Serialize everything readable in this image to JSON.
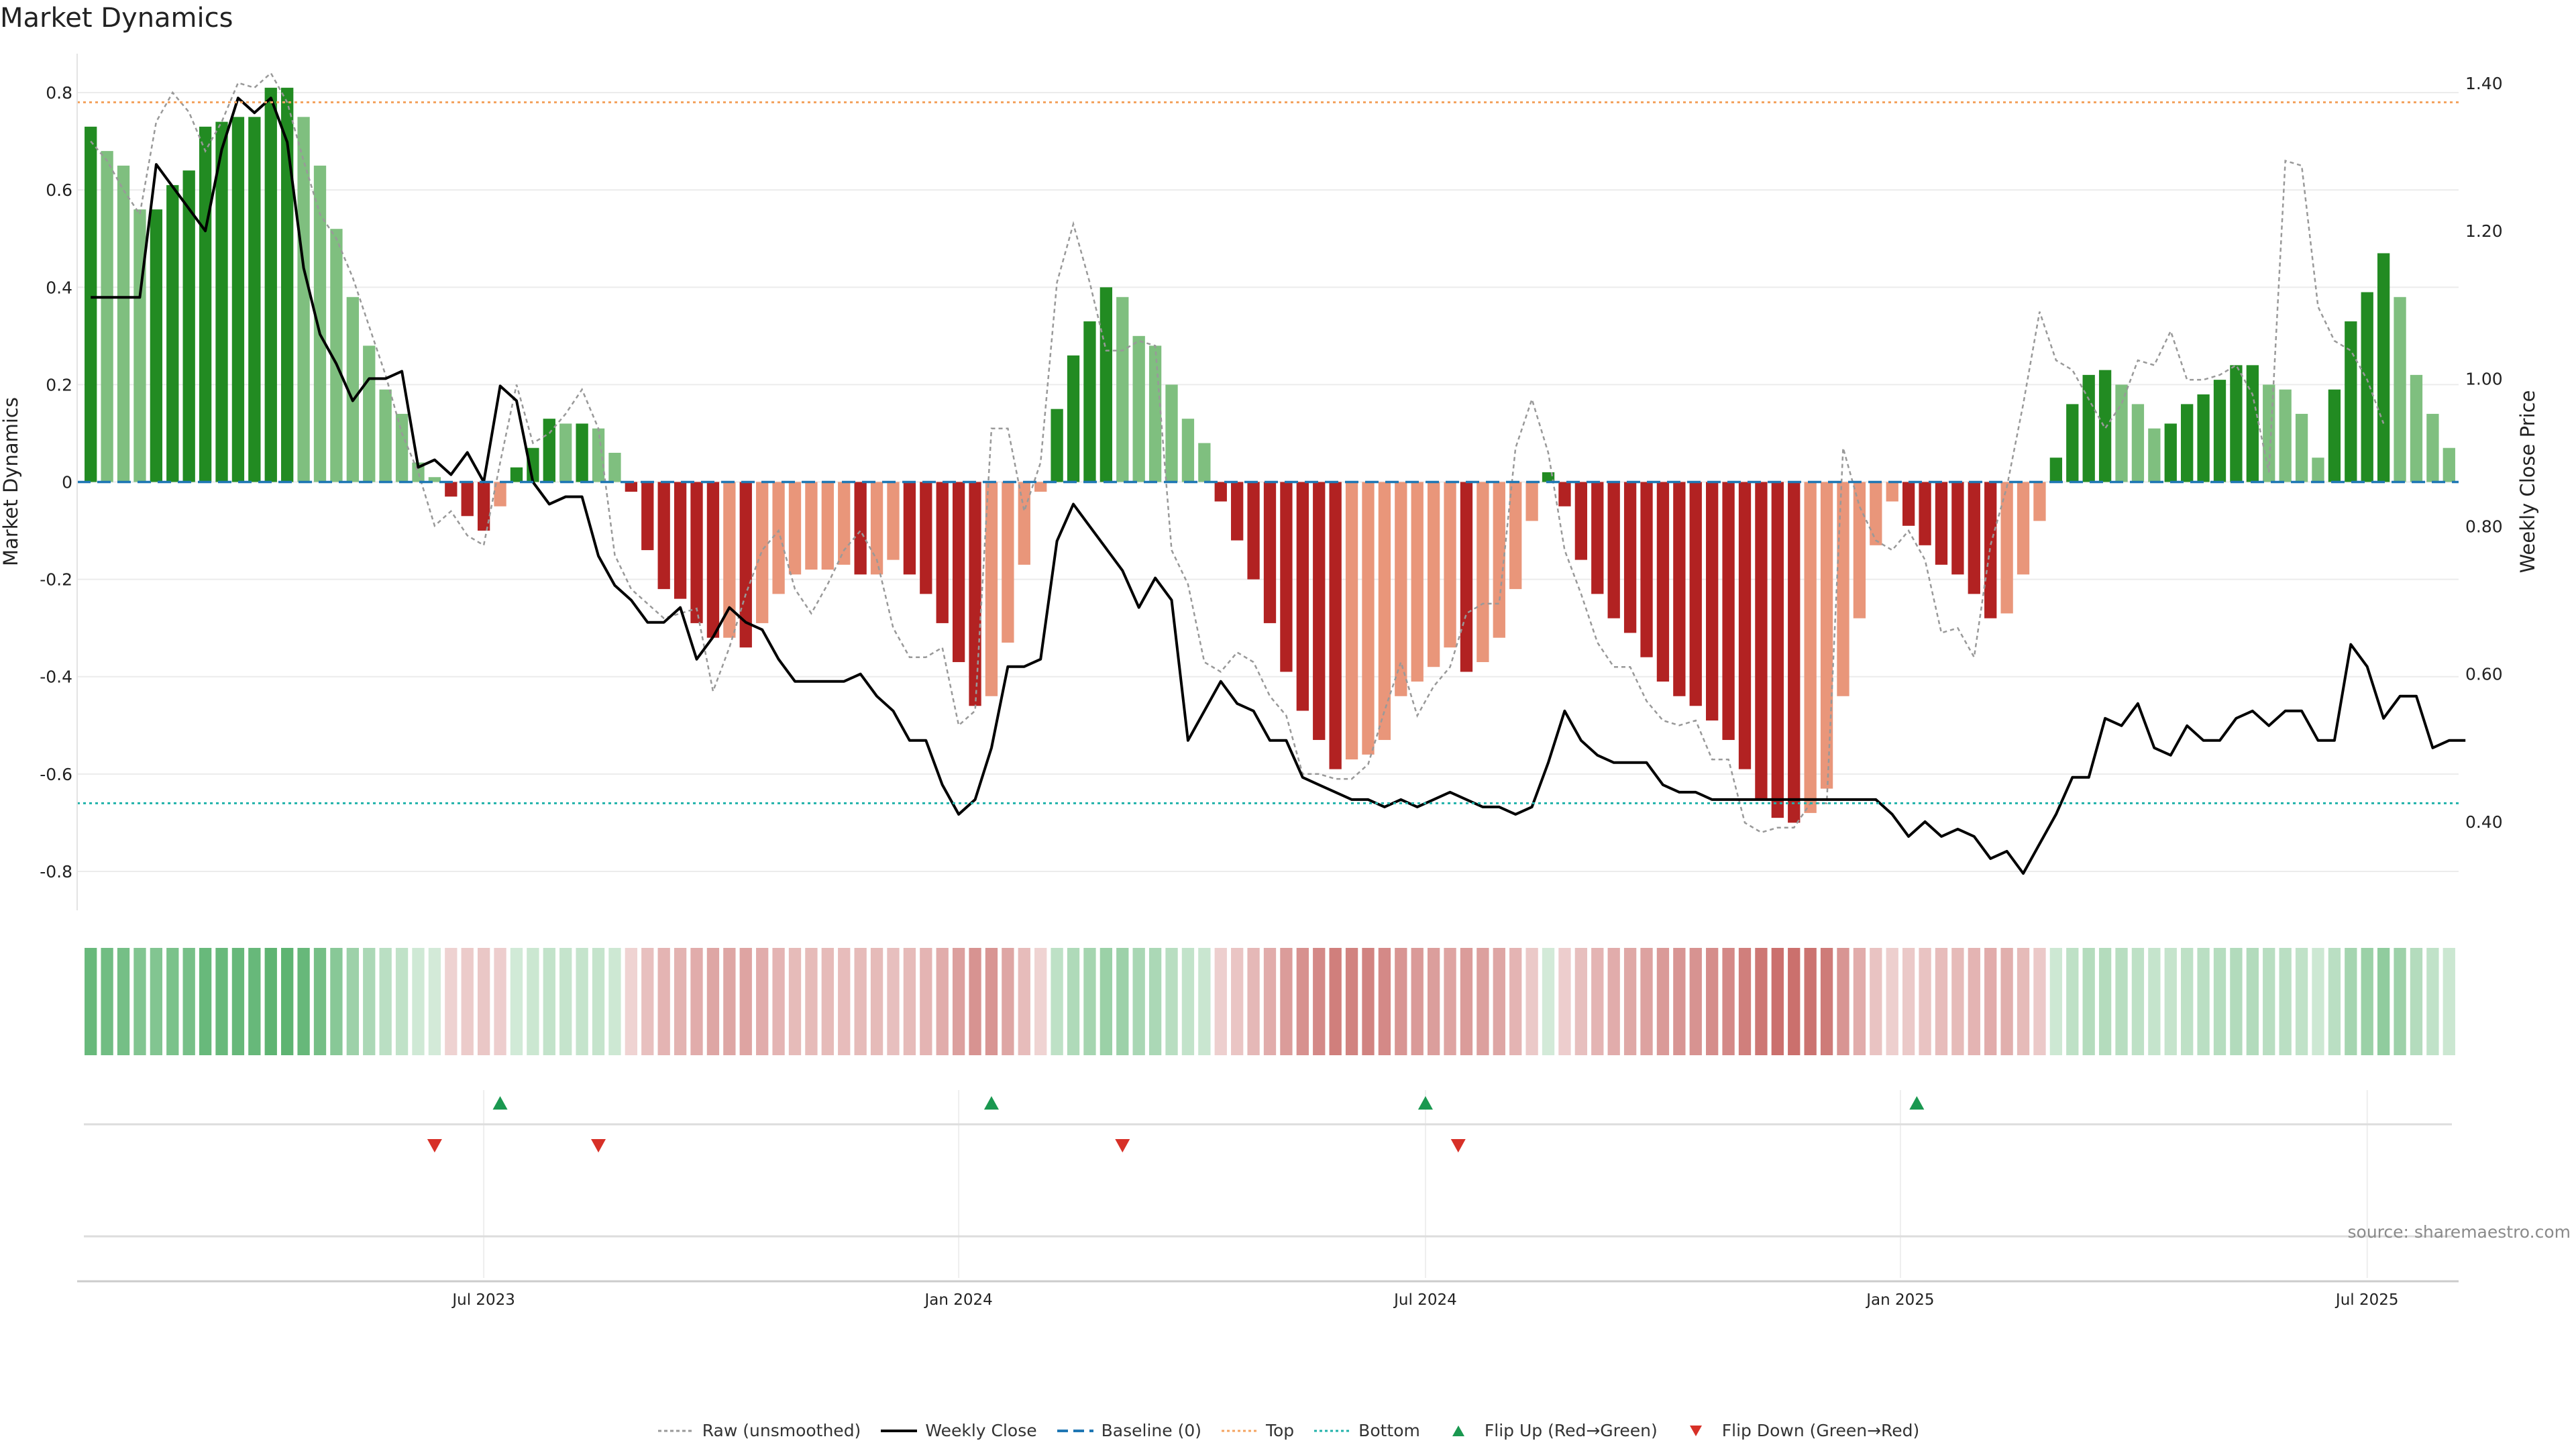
{
  "title": "Market Dynamics",
  "source": "source: sharemaestro.com",
  "colors": {
    "strong_green": "#228b22",
    "light_green": "#7fbf7f",
    "strong_red": "#b22222",
    "light_red": "#e9967a",
    "close_line": "#000000",
    "raw_line": "#999999",
    "baseline": "#1f77b4",
    "top": "#f4a460",
    "bottom": "#20b2aa",
    "flip_up": "#1a9850",
    "flip_down": "#d73027"
  },
  "legend": [
    {
      "key": "raw",
      "label": "Raw (unsmoothed)"
    },
    {
      "key": "close",
      "label": "Weekly Close"
    },
    {
      "key": "baseline",
      "label": "Baseline (0)"
    },
    {
      "key": "top",
      "label": "Top"
    },
    {
      "key": "bottom",
      "label": "Bottom"
    },
    {
      "key": "flip_up",
      "label": "Flip Up (Red→Green)"
    },
    {
      "key": "flip_down",
      "label": "Flip Down (Green→Red)"
    }
  ],
  "chart_data": {
    "type": "bar",
    "title": "Market Dynamics",
    "ylabel": "Market Dynamics",
    "y2label": "Weekly Close Price",
    "ylim": [
      -0.88,
      0.88
    ],
    "y2lim": [
      0.28,
      1.44
    ],
    "yticks": [
      "0.8",
      "0.6",
      "0.4",
      "0.2",
      "0",
      "-0.2",
      "-0.4",
      "-0.6",
      "-0.8"
    ],
    "ytick_values": [
      0.8,
      0.6,
      0.4,
      0.2,
      0,
      -0.2,
      -0.4,
      -0.6,
      -0.8
    ],
    "y2ticks": [
      "1.40",
      "1.20",
      "1.00",
      "0.80",
      "0.60",
      "0.40"
    ],
    "y2tick_values": [
      1.4,
      1.2,
      1.0,
      0.8,
      0.6,
      0.4
    ],
    "xticks": [
      {
        "label": "Jul 2023",
        "week": 24
      },
      {
        "label": "Jan 2024",
        "week": 53
      },
      {
        "label": "Jul 2024",
        "week": 81.5
      },
      {
        "label": "Jan 2025",
        "week": 110.5
      },
      {
        "label": "Jul 2025",
        "week": 139
      }
    ],
    "top_level": 0.78,
    "bottom_level": -0.66,
    "baseline": 0,
    "dynamics": [
      0.73,
      0.68,
      0.65,
      0.56,
      0.56,
      0.61,
      0.64,
      0.73,
      0.74,
      0.75,
      0.75,
      0.81,
      0.81,
      0.75,
      0.65,
      0.52,
      0.38,
      0.28,
      0.19,
      0.14,
      0.04,
      0.01,
      -0.03,
      -0.07,
      -0.1,
      -0.05,
      0.03,
      0.07,
      0.13,
      0.12,
      0.12,
      0.11,
      0.06,
      -0.02,
      -0.14,
      -0.22,
      -0.24,
      -0.29,
      -0.32,
      -0.32,
      -0.34,
      -0.29,
      -0.23,
      -0.19,
      -0.18,
      -0.18,
      -0.17,
      -0.19,
      -0.19,
      -0.16,
      -0.19,
      -0.23,
      -0.29,
      -0.37,
      -0.46,
      -0.44,
      -0.33,
      -0.17,
      -0.02,
      0.15,
      0.26,
      0.33,
      0.4,
      0.38,
      0.3,
      0.28,
      0.2,
      0.13,
      0.08,
      -0.04,
      -0.12,
      -0.2,
      -0.29,
      -0.39,
      -0.47,
      -0.53,
      -0.59,
      -0.57,
      -0.56,
      -0.53,
      -0.44,
      -0.41,
      -0.38,
      -0.34,
      -0.39,
      -0.37,
      -0.32,
      -0.22,
      -0.08,
      0.02,
      -0.05,
      -0.16,
      -0.23,
      -0.28,
      -0.31,
      -0.36,
      -0.41,
      -0.44,
      -0.46,
      -0.49,
      -0.53,
      -0.59,
      -0.65,
      -0.69,
      -0.7,
      -0.68,
      -0.63,
      -0.44,
      -0.28,
      -0.13,
      -0.04,
      -0.09,
      -0.13,
      -0.17,
      -0.19,
      -0.23,
      -0.28,
      -0.27,
      -0.19,
      -0.08,
      0.05,
      0.16,
      0.22,
      0.23,
      0.2,
      0.16,
      0.11,
      0.12,
      0.16,
      0.18,
      0.21,
      0.24,
      0.24,
      0.2,
      0.19,
      0.14,
      0.05,
      0.19,
      0.33,
      0.39,
      0.47,
      0.38,
      0.22,
      0.14,
      0.07
    ],
    "raw": [
      0.7,
      0.66,
      0.6,
      0.55,
      0.74,
      0.8,
      0.76,
      0.68,
      0.74,
      0.82,
      0.81,
      0.84,
      0.78,
      0.66,
      0.55,
      0.5,
      0.42,
      0.32,
      0.22,
      0.1,
      0.02,
      -0.09,
      -0.06,
      -0.11,
      -0.13,
      0.04,
      0.2,
      0.08,
      0.1,
      0.14,
      0.19,
      0.11,
      -0.15,
      -0.22,
      -0.25,
      -0.28,
      -0.27,
      -0.26,
      -0.43,
      -0.34,
      -0.23,
      -0.14,
      -0.1,
      -0.22,
      -0.27,
      -0.21,
      -0.14,
      -0.1,
      -0.16,
      -0.3,
      -0.36,
      -0.36,
      -0.34,
      -0.5,
      -0.47,
      0.11,
      0.11,
      -0.06,
      0.04,
      0.41,
      0.53,
      0.41,
      0.27,
      0.27,
      0.29,
      0.28,
      -0.14,
      -0.21,
      -0.37,
      -0.39,
      -0.35,
      -0.37,
      -0.44,
      -0.48,
      -0.6,
      -0.6,
      -0.61,
      -0.61,
      -0.58,
      -0.47,
      -0.37,
      -0.48,
      -0.42,
      -0.38,
      -0.27,
      -0.25,
      -0.25,
      0.07,
      0.17,
      0.06,
      -0.14,
      -0.23,
      -0.33,
      -0.38,
      -0.38,
      -0.45,
      -0.49,
      -0.5,
      -0.49,
      -0.57,
      -0.57,
      -0.7,
      -0.72,
      -0.71,
      -0.71,
      -0.66,
      -0.66,
      0.07,
      -0.05,
      -0.12,
      -0.14,
      -0.1,
      -0.16,
      -0.31,
      -0.3,
      -0.36,
      -0.13,
      -0.01,
      0.16,
      0.35,
      0.25,
      0.23,
      0.17,
      0.11,
      0.16,
      0.25,
      0.24,
      0.31,
      0.21,
      0.21,
      0.22,
      0.24,
      0.18,
      0.02,
      0.66,
      0.65,
      0.36,
      0.29,
      0.27,
      0.21,
      0.12
    ],
    "close": [
      1.11,
      1.11,
      1.11,
      1.11,
      1.29,
      1.26,
      1.23,
      1.2,
      1.31,
      1.38,
      1.36,
      1.38,
      1.32,
      1.15,
      1.06,
      1.02,
      0.97,
      1.0,
      1.0,
      1.01,
      0.88,
      0.89,
      0.87,
      0.9,
      0.86,
      0.99,
      0.97,
      0.86,
      0.83,
      0.84,
      0.84,
      0.76,
      0.72,
      0.7,
      0.67,
      0.67,
      0.69,
      0.62,
      0.65,
      0.69,
      0.67,
      0.66,
      0.62,
      0.59,
      0.59,
      0.59,
      0.59,
      0.6,
      0.57,
      0.55,
      0.51,
      0.51,
      0.45,
      0.41,
      0.43,
      0.5,
      0.61,
      0.61,
      0.62,
      0.78,
      0.83,
      0.8,
      0.77,
      0.74,
      0.69,
      0.73,
      0.7,
      0.51,
      0.55,
      0.59,
      0.56,
      0.55,
      0.51,
      0.51,
      0.46,
      0.45,
      0.44,
      0.43,
      0.43,
      0.42,
      0.43,
      0.42,
      0.43,
      0.44,
      0.43,
      0.42,
      0.42,
      0.41,
      0.42,
      0.48,
      0.55,
      0.51,
      0.49,
      0.48,
      0.48,
      0.48,
      0.45,
      0.44,
      0.44,
      0.43,
      0.43,
      0.43,
      0.43,
      0.43,
      0.43,
      0.43,
      0.43,
      0.43,
      0.43,
      0.43,
      0.41,
      0.38,
      0.4,
      0.38,
      0.39,
      0.38,
      0.35,
      0.36,
      0.33,
      0.37,
      0.41,
      0.46,
      0.46,
      0.54,
      0.53,
      0.56,
      0.5,
      0.49,
      0.53,
      0.51,
      0.51,
      0.54,
      0.55,
      0.53,
      0.55,
      0.55,
      0.51,
      0.51,
      0.64,
      0.61,
      0.54,
      0.57,
      0.57,
      0.5,
      0.51,
      0.51
    ],
    "flip_up_weeks": [
      25,
      55,
      81.5,
      111.5
    ],
    "flip_down_weeks": [
      21,
      31,
      63,
      83.5
    ]
  }
}
